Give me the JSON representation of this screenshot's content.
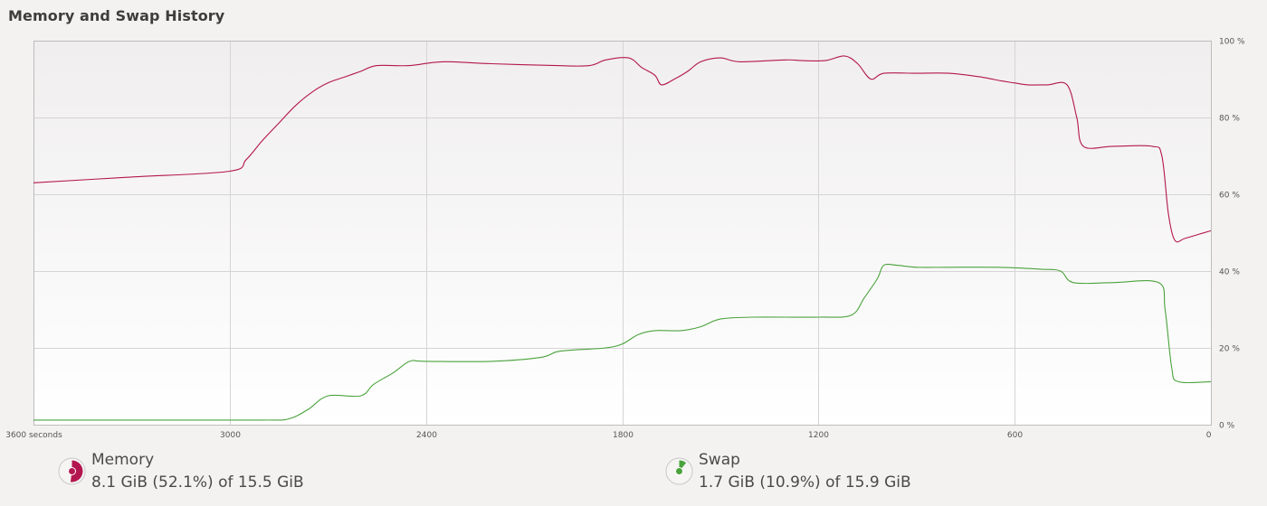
{
  "header": {
    "title": "Memory and Swap History"
  },
  "chart_data": {
    "type": "line",
    "x_start_label": "3600 seconds",
    "xticks": [
      {
        "value": 3600,
        "label": "3600 seconds"
      },
      {
        "value": 3000,
        "label": "3000"
      },
      {
        "value": 2400,
        "label": "2400"
      },
      {
        "value": 1800,
        "label": "1800"
      },
      {
        "value": 1200,
        "label": "1200"
      },
      {
        "value": 600,
        "label": "600"
      },
      {
        "value": 0,
        "label": "0"
      }
    ],
    "yticks": [
      {
        "value": 100,
        "label": "100 %"
      },
      {
        "value": 80,
        "label": "80 %"
      },
      {
        "value": 60,
        "label": "60 %"
      },
      {
        "value": 40,
        "label": "40 %"
      },
      {
        "value": 20,
        "label": "20 %"
      },
      {
        "value": 0,
        "label": "0 %"
      }
    ],
    "xlim": [
      3600,
      0
    ],
    "ylim": [
      0,
      100
    ],
    "grid": true,
    "series": [
      {
        "name": "Memory",
        "color": "#b3164f",
        "points": [
          [
            3600,
            63
          ],
          [
            3300,
            64.5
          ],
          [
            3000,
            66
          ],
          [
            2950,
            69
          ],
          [
            2900,
            74
          ],
          [
            2850,
            78.5
          ],
          [
            2800,
            83
          ],
          [
            2750,
            86.5
          ],
          [
            2700,
            89
          ],
          [
            2650,
            90.5
          ],
          [
            2600,
            92
          ],
          [
            2550,
            93.5
          ],
          [
            2450,
            93.5
          ],
          [
            2350,
            94.5
          ],
          [
            2200,
            94
          ],
          [
            2000,
            93.5
          ],
          [
            1900,
            93.5
          ],
          [
            1850,
            95
          ],
          [
            1780,
            95.5
          ],
          [
            1740,
            93
          ],
          [
            1700,
            91
          ],
          [
            1680,
            88.5
          ],
          [
            1640,
            90
          ],
          [
            1600,
            92
          ],
          [
            1560,
            94.5
          ],
          [
            1500,
            95.5
          ],
          [
            1440,
            94.5
          ],
          [
            1300,
            95
          ],
          [
            1250,
            94.8
          ],
          [
            1180,
            94.8
          ],
          [
            1120,
            96
          ],
          [
            1080,
            94
          ],
          [
            1040,
            90
          ],
          [
            1000,
            91.5
          ],
          [
            900,
            91.5
          ],
          [
            800,
            91.5
          ],
          [
            700,
            90.5
          ],
          [
            640,
            89.5
          ],
          [
            600,
            89
          ],
          [
            560,
            88.5
          ],
          [
            500,
            88.5
          ],
          [
            440,
            88.5
          ],
          [
            410,
            80
          ],
          [
            390,
            72.5
          ],
          [
            300,
            72.5
          ],
          [
            180,
            72.5
          ],
          [
            150,
            70
          ],
          [
            130,
            55
          ],
          [
            110,
            48
          ],
          [
            80,
            48.5
          ],
          [
            40,
            49.5
          ],
          [
            0,
            50.5
          ]
        ]
      },
      {
        "name": "Swap",
        "color": "#4aa33c",
        "points": [
          [
            3600,
            1.2
          ],
          [
            3200,
            1.2
          ],
          [
            2900,
            1.2
          ],
          [
            2820,
            1.5
          ],
          [
            2760,
            4
          ],
          [
            2700,
            7.5
          ],
          [
            2600,
            7.5
          ],
          [
            2560,
            10.5
          ],
          [
            2500,
            13.5
          ],
          [
            2450,
            16.5
          ],
          [
            2400,
            16.5
          ],
          [
            2200,
            16.5
          ],
          [
            2050,
            17.5
          ],
          [
            2000,
            19
          ],
          [
            1940,
            19.5
          ],
          [
            1850,
            20
          ],
          [
            1800,
            21
          ],
          [
            1750,
            23.5
          ],
          [
            1700,
            24.5
          ],
          [
            1620,
            24.5
          ],
          [
            1560,
            25.5
          ],
          [
            1500,
            27.5
          ],
          [
            1400,
            28
          ],
          [
            1200,
            28
          ],
          [
            1100,
            28.5
          ],
          [
            1060,
            33
          ],
          [
            1020,
            38
          ],
          [
            1000,
            41.5
          ],
          [
            960,
            41.5
          ],
          [
            900,
            41
          ],
          [
            800,
            41
          ],
          [
            650,
            41
          ],
          [
            520,
            40.5
          ],
          [
            460,
            40
          ],
          [
            420,
            37
          ],
          [
            300,
            37
          ],
          [
            160,
            37
          ],
          [
            140,
            30
          ],
          [
            120,
            15
          ],
          [
            100,
            11.2
          ],
          [
            0,
            11.2
          ]
        ]
      }
    ]
  },
  "legend": {
    "memory": {
      "name": "Memory",
      "value": "8.1 GiB (52.1%) of 15.5 GiB",
      "color": "#b3164f",
      "fraction": 0.521
    },
    "swap": {
      "name": "Swap",
      "value": "1.7 GiB (10.9%) of 15.9 GiB",
      "color": "#4aa33c",
      "fraction": 0.109
    }
  }
}
